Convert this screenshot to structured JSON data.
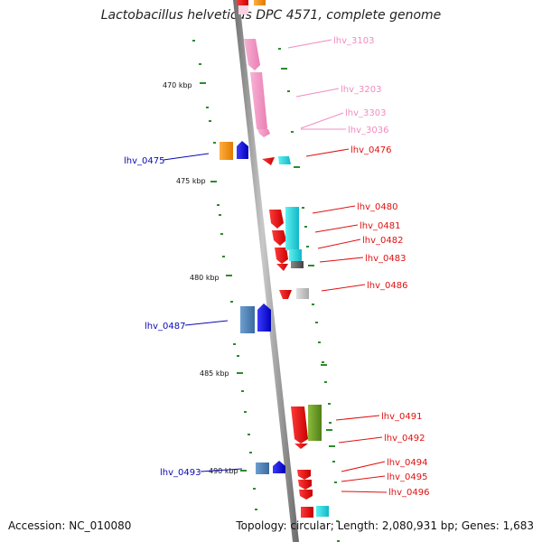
{
  "title": "Lactobacillus helveticus DPC 4571, complete genome",
  "footer": {
    "accession": "Accession: NC_010080",
    "stats": "Topology: circular; Length: 2,080,931 bp; Genes: 1,683"
  },
  "colors": {
    "backbone": "#8a8a8a",
    "minor_ticks": "#2e8b2e",
    "label_pink": "#f08cbf",
    "label_red": "#e01010",
    "label_blue": "#0a0ab4"
  },
  "ruler": {
    "labels": [
      "470 kbp",
      "475 kbp",
      "480 kbp",
      "485 kbp",
      "490 kbp"
    ]
  },
  "gene_labels": [
    {
      "text": "lhv_3103",
      "color": "pink"
    },
    {
      "text": "lhv_3203",
      "color": "pink"
    },
    {
      "text": "lhv_3303",
      "color": "pink"
    },
    {
      "text": "lhv_3036",
      "color": "pink"
    },
    {
      "text": "lhv_0476",
      "color": "red"
    },
    {
      "text": "lhv_0475",
      "color": "blue"
    },
    {
      "text": "lhv_0480",
      "color": "red"
    },
    {
      "text": "lhv_0481",
      "color": "red"
    },
    {
      "text": "lhv_0482",
      "color": "red"
    },
    {
      "text": "lhv_0483",
      "color": "red"
    },
    {
      "text": "lhv_0486",
      "color": "red"
    },
    {
      "text": "lhv_0487",
      "color": "blue"
    },
    {
      "text": "lhv_0491",
      "color": "red"
    },
    {
      "text": "lhv_0492",
      "color": "red"
    },
    {
      "text": "lhv_0493",
      "color": "blue"
    },
    {
      "text": "lhv_0494",
      "color": "red"
    },
    {
      "text": "lhv_0495",
      "color": "red"
    },
    {
      "text": "lhv_0496",
      "color": "red"
    }
  ]
}
